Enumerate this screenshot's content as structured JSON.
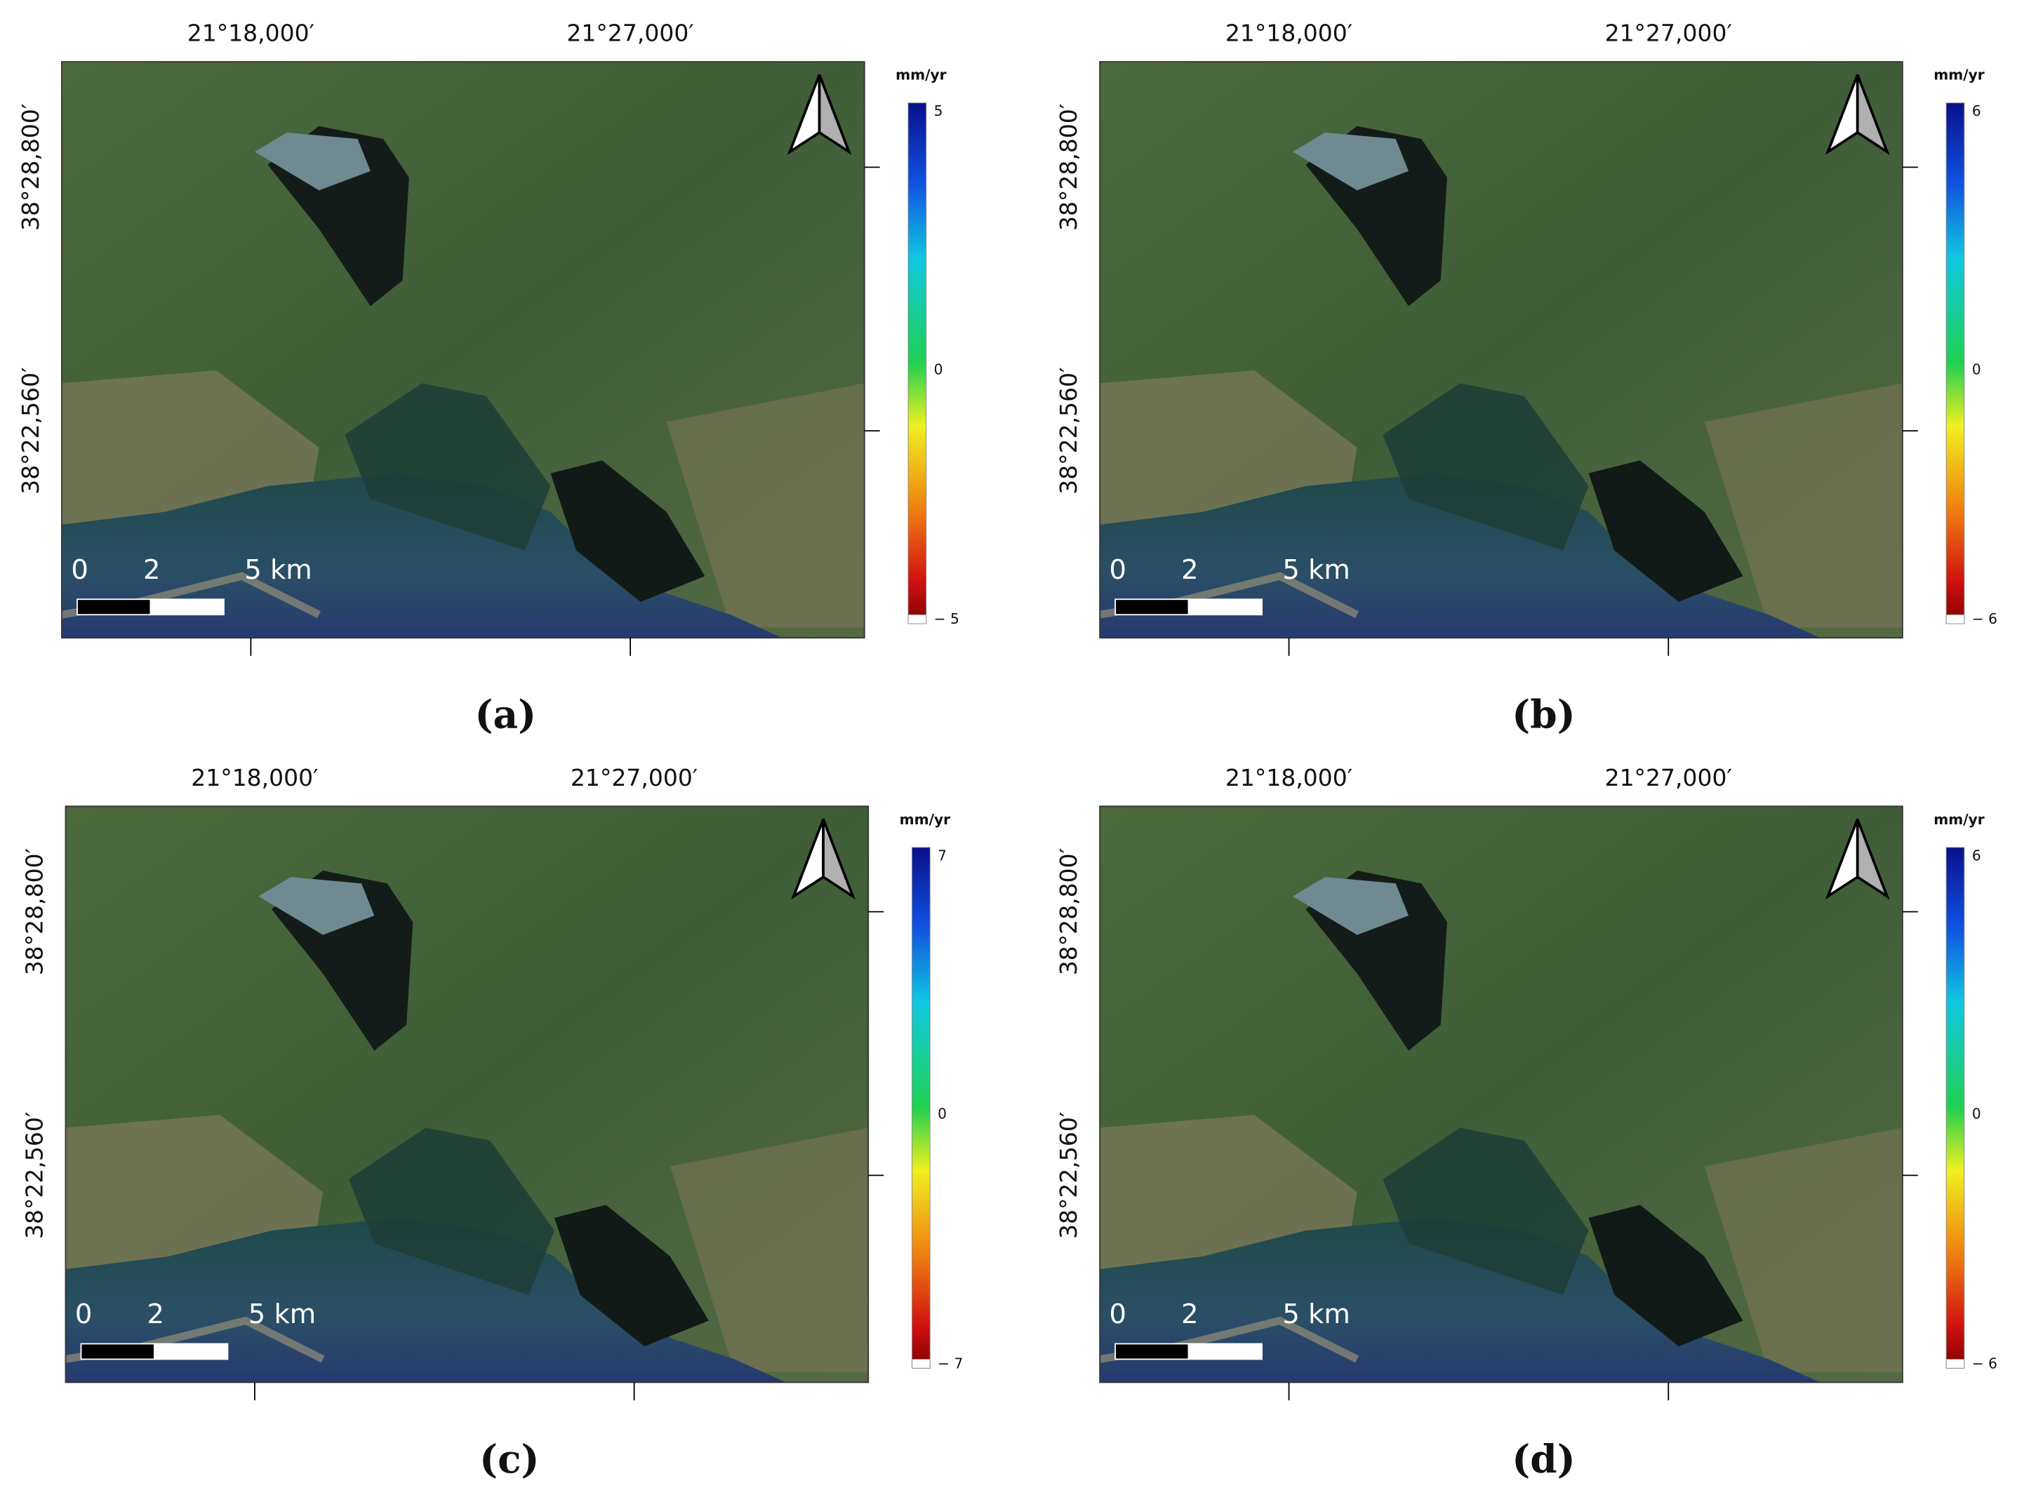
{
  "panels": [
    {
      "label": "(a)",
      "x_labels": [
        "21°18,000′",
        "21°27,000′"
      ],
      "y_labels": [
        "38°28,800′",
        "38°22,560′"
      ],
      "colorbar": {
        "unit": "mm/yr",
        "max": "5",
        "mid": "0",
        "min": "− 5"
      },
      "scale_bar": [
        "0",
        "2",
        "5 km"
      ]
    },
    {
      "label": "(b)",
      "x_labels": [
        "21°18,000′",
        "21°27,000′"
      ],
      "y_labels": [
        "38°28,800′",
        "38°22,560′"
      ],
      "colorbar": {
        "unit": "mm/yr",
        "max": "6",
        "mid": "0",
        "min": "− 6"
      },
      "scale_bar": [
        "0",
        "2",
        "5 km"
      ]
    },
    {
      "label": "(c)",
      "x_labels": [
        "21°18,000′",
        "21°27,000′"
      ],
      "y_labels": [
        "38°28,800′",
        "38°22,560′"
      ],
      "colorbar": {
        "unit": "mm/yr",
        "max": "7",
        "mid": "0",
        "min": "− 7"
      },
      "scale_bar": [
        "0",
        "2",
        "5 km"
      ]
    },
    {
      "label": "(d)",
      "x_labels": [
        "21°18,000′",
        "21°27,000′"
      ],
      "y_labels": [
        "38°28,800′",
        "38°22,560′"
      ],
      "colorbar": {
        "unit": "mm/yr",
        "max": "6",
        "mid": "0",
        "min": "− 6"
      },
      "scale_bar": [
        "0",
        "2",
        "5 km"
      ]
    }
  ]
}
